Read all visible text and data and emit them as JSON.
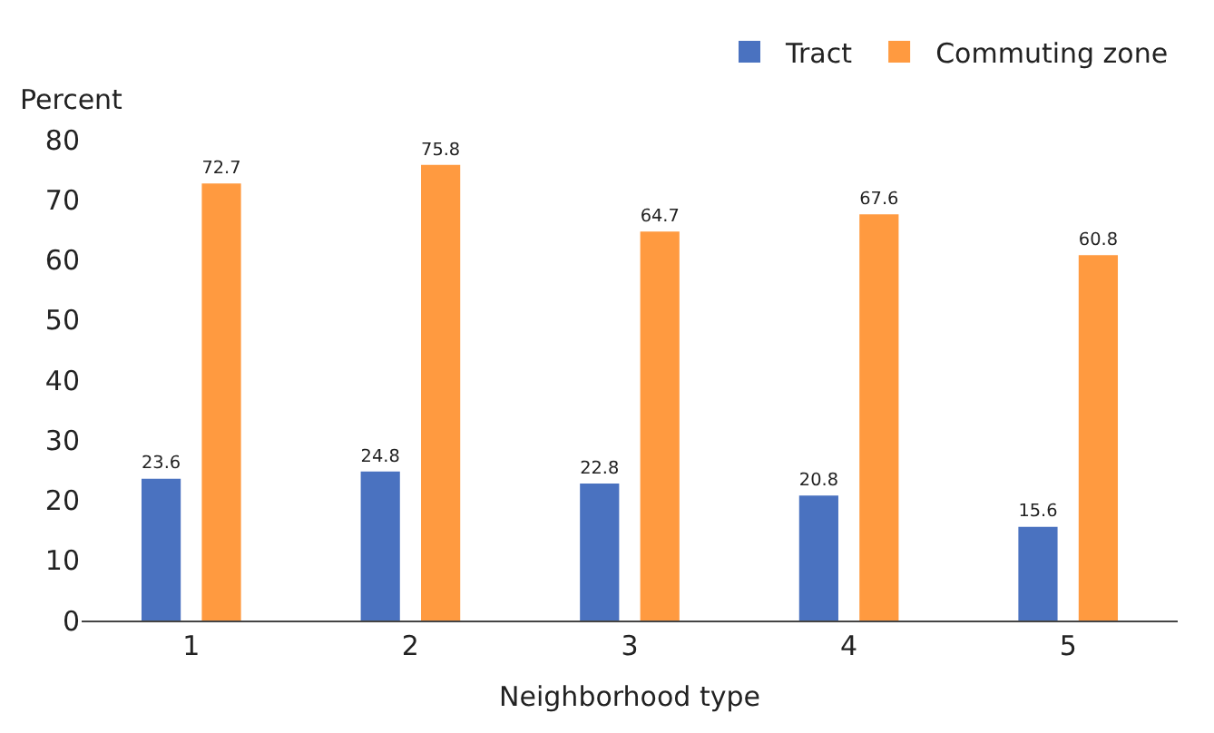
{
  "chart_data": {
    "type": "bar",
    "ylabel": "Percent",
    "xlabel": "Neighborhood type",
    "categories": [
      "1",
      "2",
      "3",
      "4",
      "5"
    ],
    "series": [
      {
        "name": "Tract",
        "color": "#4a72c0",
        "values": [
          23.6,
          24.8,
          22.8,
          20.8,
          15.6
        ]
      },
      {
        "name": "Commuting zone",
        "color": "#ff9a40",
        "values": [
          72.7,
          75.8,
          64.7,
          67.6,
          60.8
        ]
      }
    ],
    "ylim": [
      0,
      80
    ],
    "yticks": [
      0,
      10,
      20,
      30,
      40,
      50,
      60,
      70,
      80
    ],
    "grid": false,
    "legend": "top right",
    "data_labels": true
  }
}
